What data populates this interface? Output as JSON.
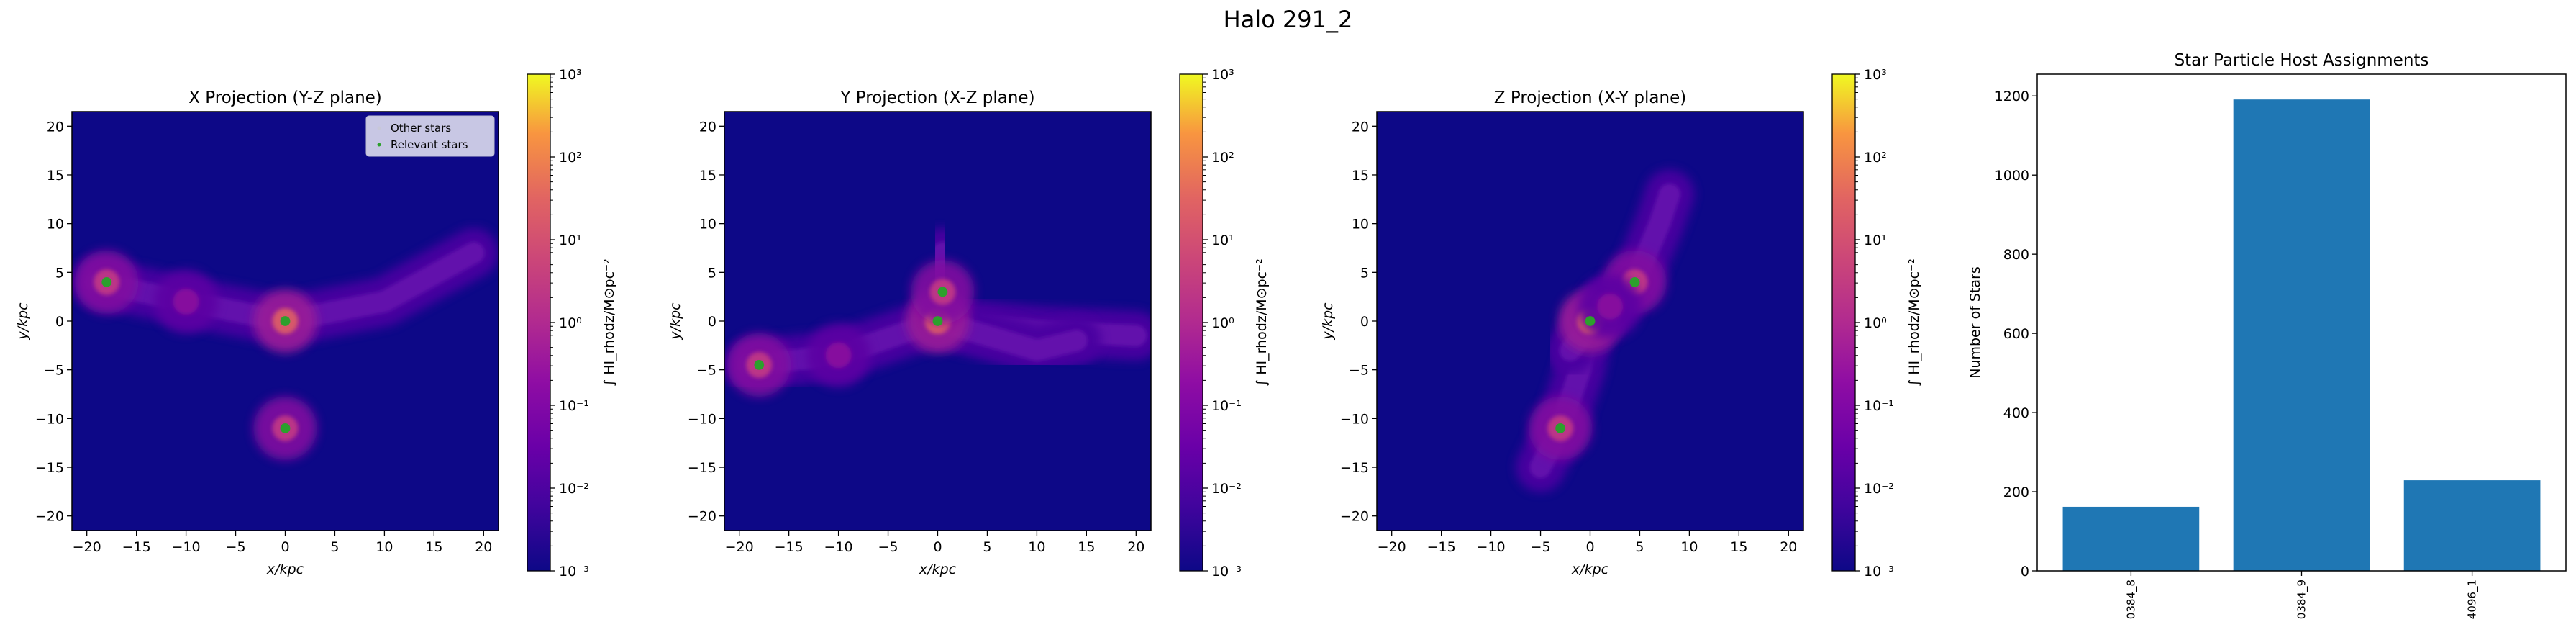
{
  "figure": {
    "title": "Halo 291_2"
  },
  "chart_data": [
    {
      "type": "heatmap",
      "title": "X Projection (Y-Z plane)",
      "xlabel": "x/kpc",
      "ylabel": "y/kpc",
      "xlim": [
        -21.5,
        21.5
      ],
      "ylim": [
        -21.5,
        21.5
      ],
      "xticks": [
        -20,
        -15,
        -10,
        -5,
        0,
        5,
        10,
        15,
        20
      ],
      "yticks": [
        -20,
        -15,
        -10,
        -5,
        0,
        5,
        10,
        15,
        20
      ],
      "colorbar": {
        "label": "∫ HI_rhodz/M⊙pc⁻²",
        "scale": "log",
        "min_exp": -3,
        "max_exp": 3,
        "tick_labels": [
          "10⁻³",
          "10⁻²",
          "10⁻¹",
          "10⁰",
          "10¹",
          "10²",
          "10³"
        ]
      },
      "legend": {
        "position": "top-right",
        "entries": [
          {
            "label": "Other stars",
            "color": "#c8c8d8"
          },
          {
            "label": "Relevant stars",
            "color": "#2ca02c"
          }
        ]
      },
      "features": {
        "blobs": [
          {
            "x": -18,
            "y": 4,
            "level": 0.55
          },
          {
            "x": -10,
            "y": 2,
            "level": 0.35
          },
          {
            "x": 0,
            "y": 0,
            "level": 0.7
          },
          {
            "x": 0,
            "y": -11,
            "level": 0.55
          }
        ],
        "filaments": [
          [
            [
              -19,
              4
            ],
            [
              -10,
              2
            ],
            [
              0,
              0
            ],
            [
              10,
              2
            ],
            [
              19,
              7
            ]
          ],
          [
            [
              0,
              0
            ],
            [
              0,
              -6
            ],
            [
              0,
              -11
            ],
            [
              0,
              -15
            ]
          ],
          [
            [
              -3,
              0
            ],
            [
              -3,
              5
            ],
            [
              -3,
              7
            ]
          ]
        ],
        "relevant_stars": [
          {
            "x": 0,
            "y": 0
          },
          {
            "x": -18,
            "y": 4
          },
          {
            "x": 0,
            "y": -11
          }
        ]
      }
    },
    {
      "type": "heatmap",
      "title": "Y Projection (X-Z plane)",
      "xlabel": "x/kpc",
      "ylabel": "y/kpc",
      "xlim": [
        -21.5,
        21.5
      ],
      "ylim": [
        -21.5,
        21.5
      ],
      "xticks": [
        -20,
        -15,
        -10,
        -5,
        0,
        5,
        10,
        15,
        20
      ],
      "yticks": [
        -20,
        -15,
        -10,
        -5,
        0,
        5,
        10,
        15,
        20
      ],
      "colorbar": {
        "label": "∫ HI_rhodz/M⊙pc⁻²",
        "scale": "log",
        "min_exp": -3,
        "max_exp": 3,
        "tick_labels": [
          "10⁻³",
          "10⁻²",
          "10⁻¹",
          "10⁰",
          "10¹",
          "10²",
          "10³"
        ]
      },
      "features": {
        "blobs": [
          {
            "x": -18,
            "y": -4.5,
            "level": 0.55
          },
          {
            "x": -10,
            "y": -3.5,
            "level": 0.35
          },
          {
            "x": 0,
            "y": 0,
            "level": 0.7
          },
          {
            "x": 0.5,
            "y": 3,
            "level": 0.55
          }
        ],
        "filaments": [
          [
            [
              -19,
              -4.5
            ],
            [
              -10,
              -3.5
            ],
            [
              0,
              0
            ],
            [
              10,
              -1
            ],
            [
              20,
              -1.5
            ]
          ],
          [
            [
              0,
              0
            ],
            [
              0.5,
              3
            ],
            [
              0.5,
              7
            ]
          ],
          [
            [
              0,
              0
            ],
            [
              10,
              -3
            ],
            [
              14,
              -2
            ]
          ]
        ],
        "relevant_stars": [
          {
            "x": 0,
            "y": 0
          },
          {
            "x": 0.5,
            "y": 3
          },
          {
            "x": -18,
            "y": -4.5
          }
        ]
      }
    },
    {
      "type": "heatmap",
      "title": "Z Projection (X-Y plane)",
      "xlabel": "x/kpc",
      "ylabel": "y/kpc",
      "xlim": [
        -21.5,
        21.5
      ],
      "ylim": [
        -21.5,
        21.5
      ],
      "xticks": [
        -20,
        -15,
        -10,
        -5,
        0,
        5,
        10,
        15,
        20
      ],
      "yticks": [
        -20,
        -15,
        -10,
        -5,
        0,
        5,
        10,
        15,
        20
      ],
      "colorbar": {
        "label": "∫ HI_rhodz/M⊙pc⁻²",
        "scale": "log",
        "min_exp": -3,
        "max_exp": 3,
        "tick_labels": [
          "10⁻³",
          "10⁻²",
          "10⁻¹",
          "10⁰",
          "10¹",
          "10²",
          "10³"
        ]
      },
      "features": {
        "blobs": [
          {
            "x": 0,
            "y": 0,
            "level": 0.7
          },
          {
            "x": 4.5,
            "y": 4,
            "level": 0.55
          },
          {
            "x": -3,
            "y": -11,
            "level": 0.55
          },
          {
            "x": 2,
            "y": 1.5,
            "level": 0.35
          }
        ],
        "filaments": [
          [
            [
              -5,
              -15
            ],
            [
              -3,
              -11
            ],
            [
              -1,
              -5
            ],
            [
              0,
              0
            ],
            [
              4.5,
              4
            ],
            [
              7,
              10
            ],
            [
              8,
              13
            ]
          ],
          [
            [
              -2,
              -3
            ],
            [
              2,
              2
            ]
          ]
        ],
        "relevant_stars": [
          {
            "x": 0,
            "y": 0
          },
          {
            "x": 4.5,
            "y": 4
          },
          {
            "x": -3,
            "y": -11
          }
        ]
      }
    },
    {
      "type": "bar",
      "title": "Star Particle Host Assignments",
      "xlabel": "",
      "ylabel": "Number of Stars",
      "categories": [
        "0384_8",
        "0384_9",
        "4096_1"
      ],
      "values": [
        162,
        1191,
        229
      ],
      "ylim": [
        0,
        1255
      ],
      "yticks": [
        0,
        200,
        400,
        600,
        800,
        1000,
        1200
      ],
      "bar_color": "#1f77b4"
    }
  ]
}
